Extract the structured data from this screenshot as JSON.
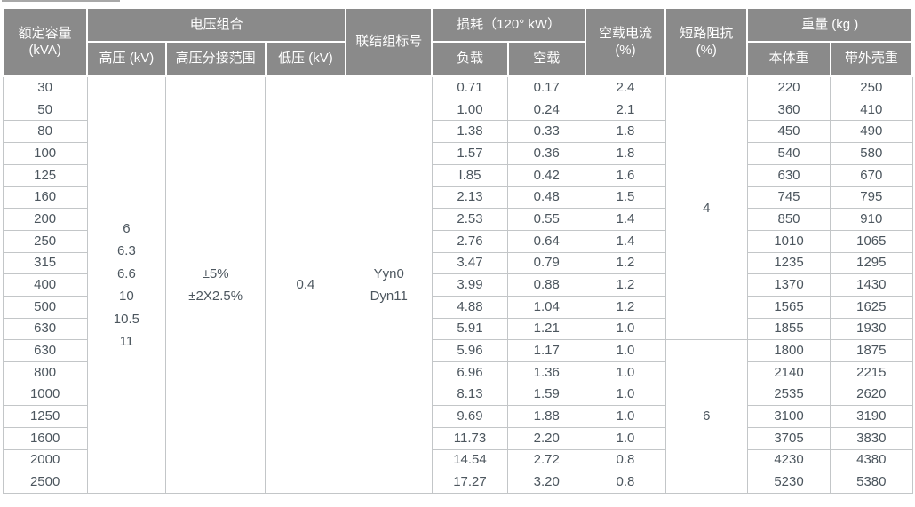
{
  "colors": {
    "header_bg": "#8a8a8a",
    "header_text": "#ffffff",
    "body_text": "#4c565e",
    "grid_border": "#c3c6c8"
  },
  "table": {
    "header": {
      "rated_capacity": "额定容量\n(kVA)",
      "voltage_group": "电压组合",
      "hv": "高压 (kV)",
      "tap_range": "高压分接范围",
      "lv": "低压 (kV)",
      "connection": "联结组标号",
      "loss": "损耗（120° kW）",
      "load_loss": "负载",
      "no_load_loss": "空载",
      "no_load_current": "空载电流\n(%)",
      "impedance": "短路阻抗\n(%)",
      "weight": "重量 (kg )",
      "body_weight": "本体重",
      "shell_weight": "带外壳重"
    },
    "merged": {
      "hv_values": "6\n6.3\n6.6\n10\n10.5\n11",
      "tap_range_values": "±5%\n±2X2.5%",
      "lv_value": "0.4",
      "connection_values": "Yyn0\nDyn11",
      "impedance_groups": [
        {
          "value": "4",
          "span": 12
        },
        {
          "value": "6",
          "span": 7
        }
      ]
    },
    "rows": [
      {
        "capacity": "30",
        "load": "0.71",
        "no_load": "0.17",
        "current": "2.4",
        "body": "220",
        "shell": "250"
      },
      {
        "capacity": "50",
        "load": "1.00",
        "no_load": "0.24",
        "current": "2.1",
        "body": "360",
        "shell": "410"
      },
      {
        "capacity": "80",
        "load": "1.38",
        "no_load": "0.33",
        "current": "1.8",
        "body": "450",
        "shell": "490"
      },
      {
        "capacity": "100",
        "load": "1.57",
        "no_load": "0.36",
        "current": "1.8",
        "body": "540",
        "shell": "580"
      },
      {
        "capacity": "125",
        "load": "I.85",
        "no_load": "0.42",
        "current": "1.6",
        "body": "630",
        "shell": "670"
      },
      {
        "capacity": "160",
        "load": "2.13",
        "no_load": "0.48",
        "current": "1.5",
        "body": "745",
        "shell": "795"
      },
      {
        "capacity": "200",
        "load": "2.53",
        "no_load": "0.55",
        "current": "1.4",
        "body": "850",
        "shell": "910"
      },
      {
        "capacity": "250",
        "load": "2.76",
        "no_load": "0.64",
        "current": "1.4",
        "body": "1010",
        "shell": "1065"
      },
      {
        "capacity": "315",
        "load": "3.47",
        "no_load": "0.79",
        "current": "1.2",
        "body": "1235",
        "shell": "1295"
      },
      {
        "capacity": "400",
        "load": "3.99",
        "no_load": "0.88",
        "current": "1.2",
        "body": "1370",
        "shell": "1430"
      },
      {
        "capacity": "500",
        "load": "4.88",
        "no_load": "1.04",
        "current": "1.2",
        "body": "1565",
        "shell": "1625"
      },
      {
        "capacity": "630",
        "load": "5.91",
        "no_load": "1.21",
        "current": "1.0",
        "body": "1855",
        "shell": "1930"
      },
      {
        "capacity": "630",
        "load": "5.96",
        "no_load": "1.17",
        "current": "1.0",
        "body": "1800",
        "shell": "1875"
      },
      {
        "capacity": "800",
        "load": "6.96",
        "no_load": "1.36",
        "current": "1.0",
        "body": "2140",
        "shell": "2215"
      },
      {
        "capacity": "1000",
        "load": "8.13",
        "no_load": "1.59",
        "current": "1.0",
        "body": "2535",
        "shell": "2620"
      },
      {
        "capacity": "1250",
        "load": "9.69",
        "no_load": "1.88",
        "current": "1.0",
        "body": "3100",
        "shell": "3190"
      },
      {
        "capacity": "1600",
        "load": "11.73",
        "no_load": "2.20",
        "current": "1.0",
        "body": "3705",
        "shell": "3830"
      },
      {
        "capacity": "2000",
        "load": "14.54",
        "no_load": "2.72",
        "current": "0.8",
        "body": "4230",
        "shell": "4380"
      },
      {
        "capacity": "2500",
        "load": "17.27",
        "no_load": "3.20",
        "current": "0.8",
        "body": "5230",
        "shell": "5380"
      }
    ]
  }
}
